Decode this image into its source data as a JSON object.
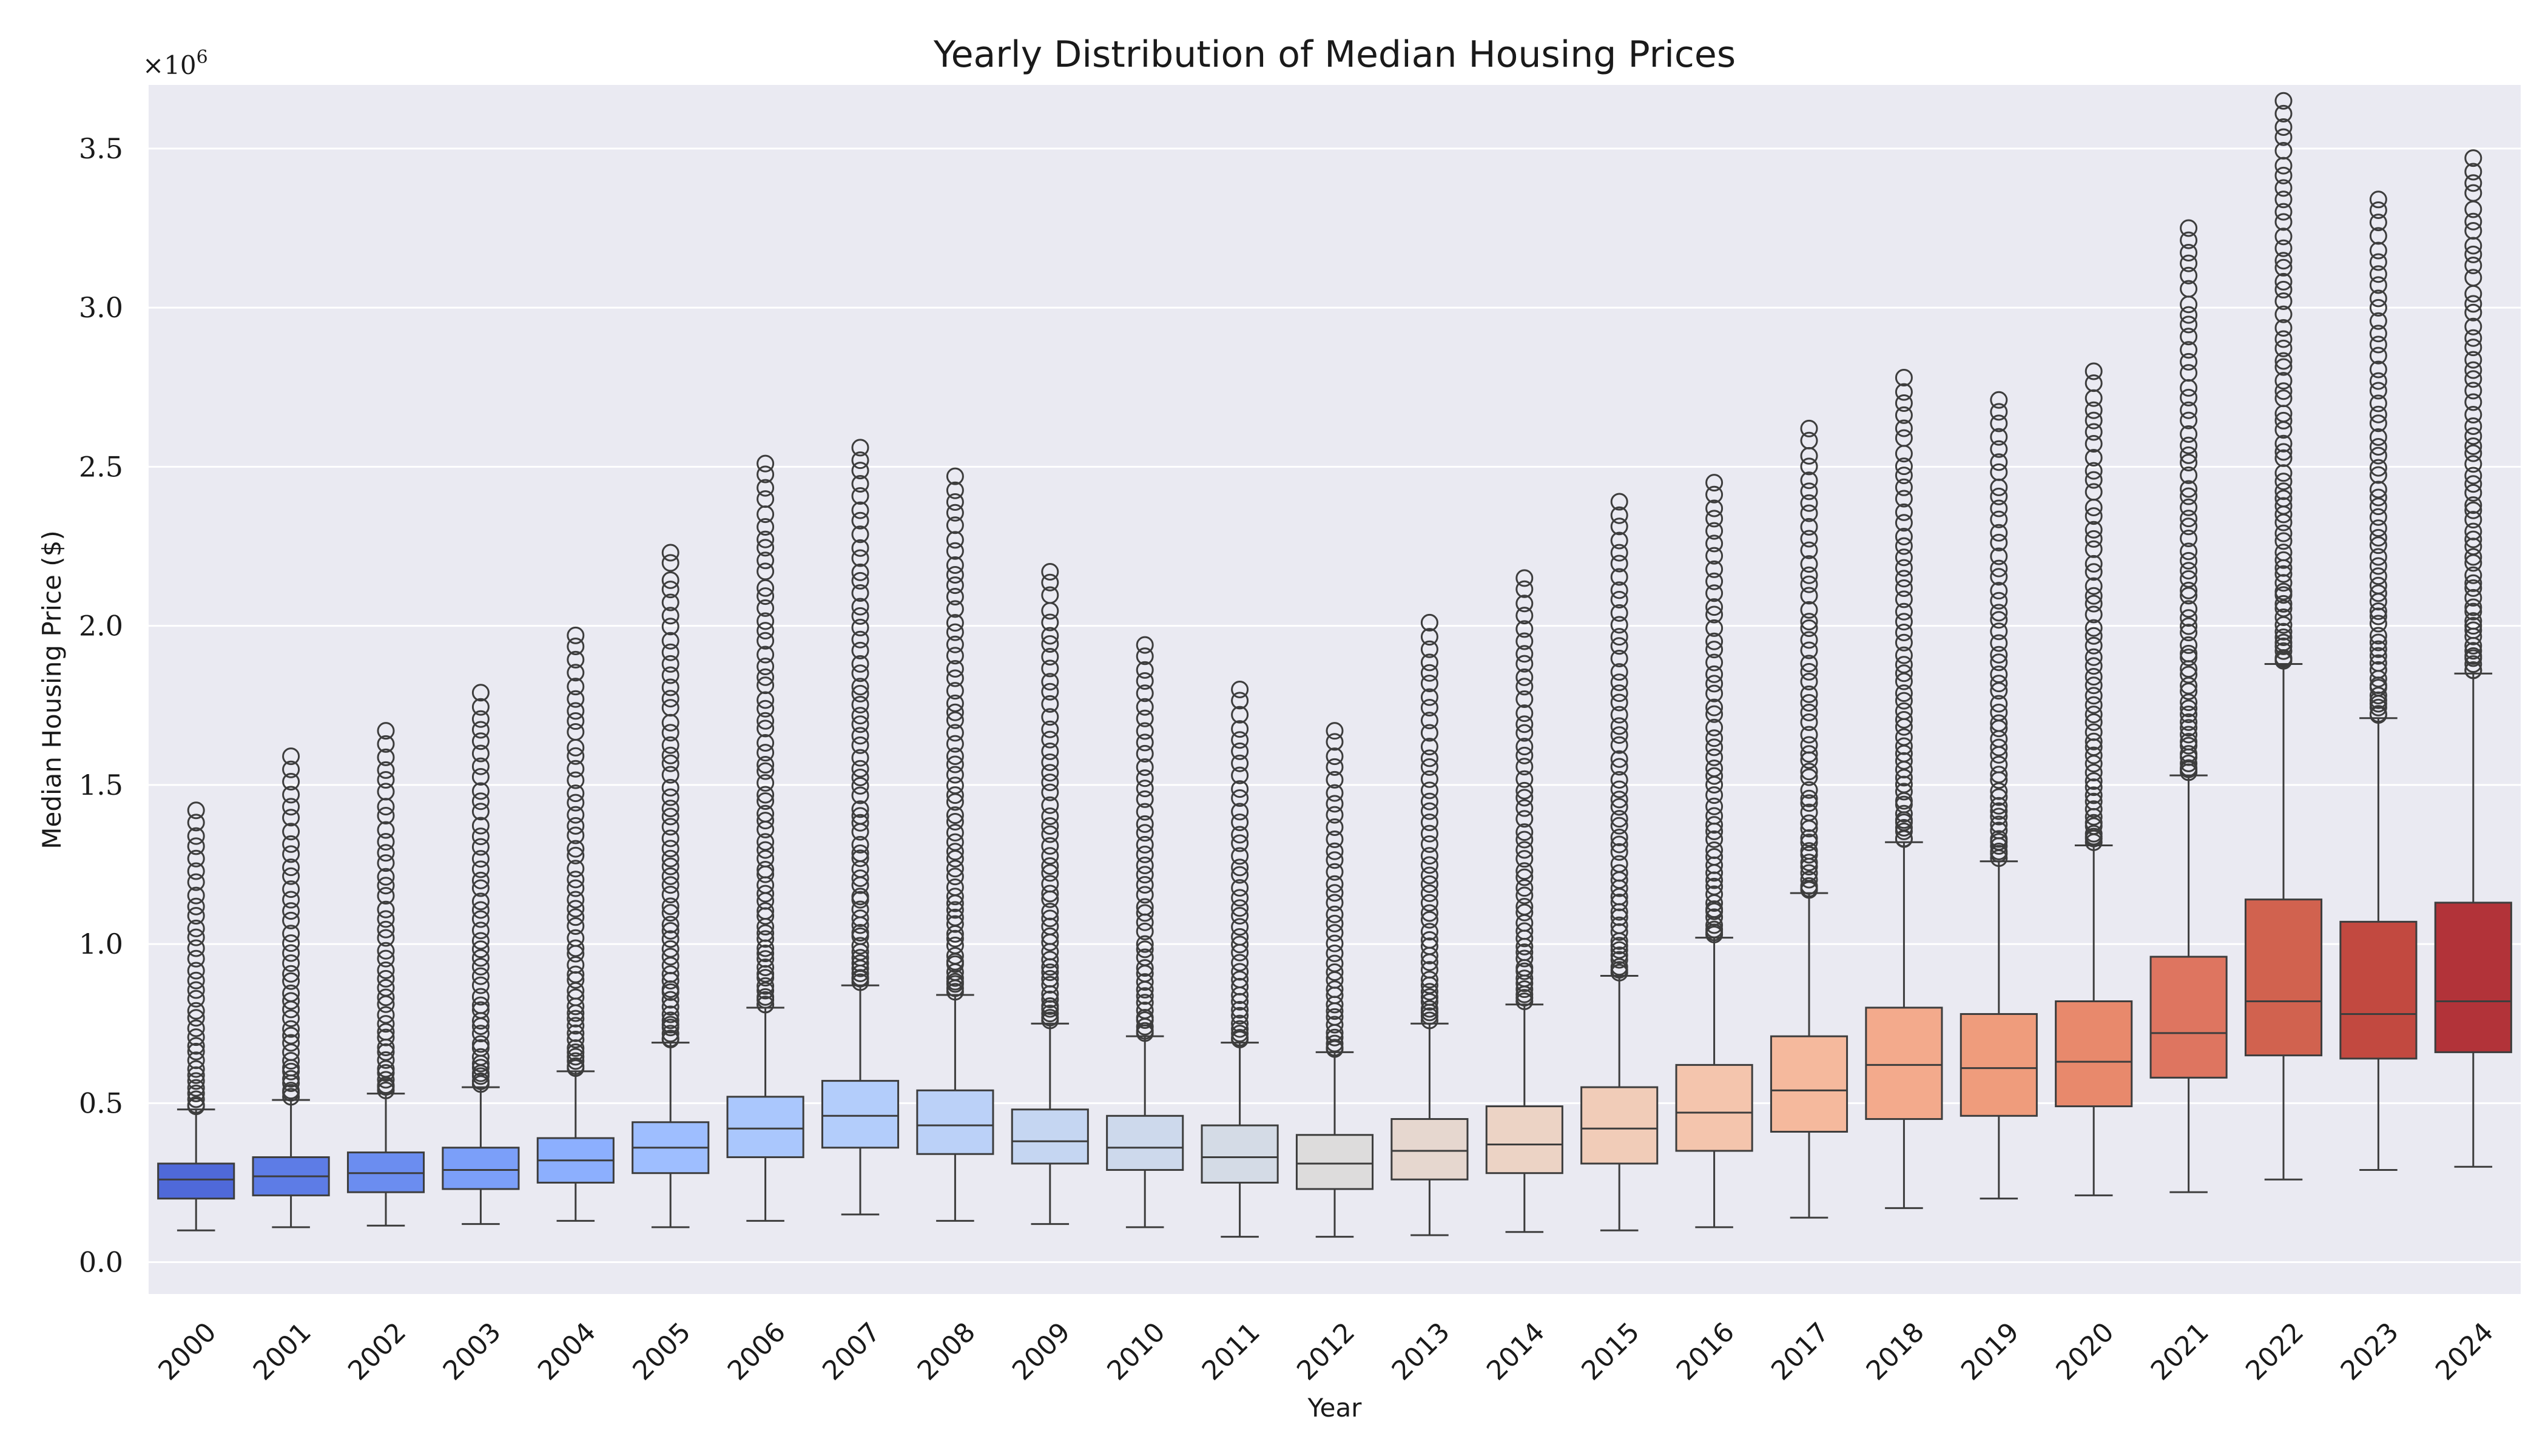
{
  "chart_data": {
    "type": "box",
    "title": "Yearly Distribution of Median Housing Prices",
    "xlabel": "Year",
    "ylabel": "Median Housing Price ($)",
    "y_multiplier_label": "×10^6",
    "y_multiplier_base": "×10",
    "y_multiplier_exp": "6",
    "ylim": [
      -0.1,
      3.7
    ],
    "yticks": [
      0.0,
      0.5,
      1.0,
      1.5,
      2.0,
      2.5,
      3.0,
      3.5
    ],
    "ytick_labels": [
      "0.0",
      "0.5",
      "1.0",
      "1.5",
      "2.0",
      "2.5",
      "3.0",
      "3.5"
    ],
    "grid": true,
    "background": "#eaeaf2",
    "colormap": "coolwarm",
    "units": "millions of dollars",
    "categories": [
      "2000",
      "2001",
      "2002",
      "2003",
      "2004",
      "2005",
      "2006",
      "2007",
      "2008",
      "2009",
      "2010",
      "2011",
      "2012",
      "2013",
      "2014",
      "2015",
      "2016",
      "2017",
      "2018",
      "2019",
      "2020",
      "2021",
      "2022",
      "2023",
      "2024"
    ],
    "boxes": [
      {
        "year": "2000",
        "color": "#4f69d9",
        "whisker_low": 0.1,
        "q1": 0.2,
        "median": 0.26,
        "q3": 0.31,
        "whisker_high": 0.48,
        "outlier_min": 0.49,
        "outlier_max": 1.42
      },
      {
        "year": "2001",
        "color": "#5d7ce6",
        "whisker_low": 0.11,
        "q1": 0.21,
        "median": 0.27,
        "q3": 0.33,
        "whisker_high": 0.51,
        "outlier_min": 0.52,
        "outlier_max": 1.59
      },
      {
        "year": "2002",
        "color": "#6b8df0",
        "whisker_low": 0.115,
        "q1": 0.22,
        "median": 0.28,
        "q3": 0.345,
        "whisker_high": 0.53,
        "outlier_min": 0.54,
        "outlier_max": 1.67
      },
      {
        "year": "2003",
        "color": "#7b9ff9",
        "whisker_low": 0.12,
        "q1": 0.23,
        "median": 0.29,
        "q3": 0.36,
        "whisker_high": 0.55,
        "outlier_min": 0.56,
        "outlier_max": 1.79
      },
      {
        "year": "2004",
        "color": "#8caffe",
        "whisker_low": 0.13,
        "q1": 0.25,
        "median": 0.32,
        "q3": 0.39,
        "whisker_high": 0.6,
        "outlier_min": 0.61,
        "outlier_max": 1.97
      },
      {
        "year": "2005",
        "color": "#9ebeff",
        "whisker_low": 0.11,
        "q1": 0.28,
        "median": 0.36,
        "q3": 0.44,
        "whisker_high": 0.69,
        "outlier_min": 0.7,
        "outlier_max": 2.23
      },
      {
        "year": "2006",
        "color": "#aac7fd",
        "whisker_low": 0.13,
        "q1": 0.33,
        "median": 0.42,
        "q3": 0.52,
        "whisker_high": 0.8,
        "outlier_min": 0.81,
        "outlier_max": 2.51
      },
      {
        "year": "2007",
        "color": "#b3cdfb",
        "whisker_low": 0.15,
        "q1": 0.36,
        "median": 0.46,
        "q3": 0.57,
        "whisker_high": 0.87,
        "outlier_min": 0.88,
        "outlier_max": 2.56
      },
      {
        "year": "2008",
        "color": "#bbd1f8",
        "whisker_low": 0.13,
        "q1": 0.34,
        "median": 0.43,
        "q3": 0.54,
        "whisker_high": 0.84,
        "outlier_min": 0.85,
        "outlier_max": 2.47
      },
      {
        "year": "2009",
        "color": "#c5d6f2",
        "whisker_low": 0.12,
        "q1": 0.31,
        "median": 0.38,
        "q3": 0.48,
        "whisker_high": 0.75,
        "outlier_min": 0.76,
        "outlier_max": 2.17
      },
      {
        "year": "2010",
        "color": "#cdd9ec",
        "whisker_low": 0.11,
        "q1": 0.29,
        "median": 0.36,
        "q3": 0.46,
        "whisker_high": 0.71,
        "outlier_min": 0.72,
        "outlier_max": 1.94
      },
      {
        "year": "2011",
        "color": "#d4dbe6",
        "whisker_low": 0.08,
        "q1": 0.25,
        "median": 0.33,
        "q3": 0.43,
        "whisker_high": 0.69,
        "outlier_min": 0.7,
        "outlier_max": 1.8
      },
      {
        "year": "2012",
        "color": "#dddcdc",
        "whisker_low": 0.08,
        "q1": 0.23,
        "median": 0.31,
        "q3": 0.4,
        "whisker_high": 0.66,
        "outlier_min": 0.67,
        "outlier_max": 1.67
      },
      {
        "year": "2013",
        "color": "#e6d7cf",
        "whisker_low": 0.085,
        "q1": 0.26,
        "median": 0.35,
        "q3": 0.45,
        "whisker_high": 0.75,
        "outlier_min": 0.76,
        "outlier_max": 2.01
      },
      {
        "year": "2014",
        "color": "#ecd3c5",
        "whisker_low": 0.095,
        "q1": 0.28,
        "median": 0.37,
        "q3": 0.49,
        "whisker_high": 0.81,
        "outlier_min": 0.82,
        "outlier_max": 2.15
      },
      {
        "year": "2015",
        "color": "#f1ccb8",
        "whisker_low": 0.1,
        "q1": 0.31,
        "median": 0.42,
        "q3": 0.55,
        "whisker_high": 0.9,
        "outlier_min": 0.91,
        "outlier_max": 2.39
      },
      {
        "year": "2016",
        "color": "#f4c5ad",
        "whisker_low": 0.11,
        "q1": 0.35,
        "median": 0.47,
        "q3": 0.62,
        "whisker_high": 1.02,
        "outlier_min": 1.03,
        "outlier_max": 2.45
      },
      {
        "year": "2017",
        "color": "#f5b99d",
        "whisker_low": 0.14,
        "q1": 0.41,
        "median": 0.54,
        "q3": 0.71,
        "whisker_high": 1.16,
        "outlier_min": 1.17,
        "outlier_max": 2.62
      },
      {
        "year": "2018",
        "color": "#f3aa8c",
        "whisker_low": 0.17,
        "q1": 0.45,
        "median": 0.62,
        "q3": 0.8,
        "whisker_high": 1.32,
        "outlier_min": 1.33,
        "outlier_max": 2.78
      },
      {
        "year": "2019",
        "color": "#ef9c7c",
        "whisker_low": 0.2,
        "q1": 0.46,
        "median": 0.61,
        "q3": 0.78,
        "whisker_high": 1.26,
        "outlier_min": 1.27,
        "outlier_max": 2.71
      },
      {
        "year": "2020",
        "color": "#e8896c",
        "whisker_low": 0.21,
        "q1": 0.49,
        "median": 0.63,
        "q3": 0.82,
        "whisker_high": 1.31,
        "outlier_min": 1.32,
        "outlier_max": 2.8
      },
      {
        "year": "2021",
        "color": "#de7560",
        "whisker_low": 0.22,
        "q1": 0.58,
        "median": 0.72,
        "q3": 0.96,
        "whisker_high": 1.53,
        "outlier_min": 1.54,
        "outlier_max": 3.25
      },
      {
        "year": "2022",
        "color": "#d1624f",
        "whisker_low": 0.26,
        "q1": 0.65,
        "median": 0.82,
        "q3": 1.14,
        "whisker_high": 1.88,
        "outlier_min": 1.89,
        "outlier_max": 3.65
      },
      {
        "year": "2023",
        "color": "#c24940",
        "whisker_low": 0.29,
        "q1": 0.64,
        "median": 0.78,
        "q3": 1.07,
        "whisker_high": 1.71,
        "outlier_min": 1.72,
        "outlier_max": 3.34
      },
      {
        "year": "2024",
        "color": "#b23339",
        "whisker_low": 0.3,
        "q1": 0.66,
        "median": 0.82,
        "q3": 1.13,
        "whisker_high": 1.85,
        "outlier_min": 1.86,
        "outlier_max": 3.47
      }
    ]
  }
}
